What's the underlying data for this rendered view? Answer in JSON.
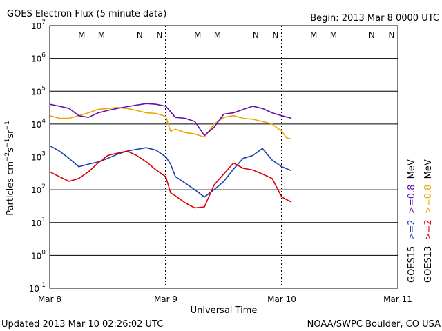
{
  "chart_data": {
    "type": "line",
    "title": "GOES Electron Flux (5 minute data)",
    "begin_label": "Begin: 2013 Mar 8 0000 UTC",
    "xlabel": "Universal Time",
    "ylabel": "Particles cm-2s-1sr-1",
    "y_scale": "log",
    "ylim": [
      0.1,
      10000000
    ],
    "y_ticks": [
      {
        "base": "10",
        "exp": "7",
        "value": 10000000
      },
      {
        "base": "10",
        "exp": "6",
        "value": 1000000
      },
      {
        "base": "10",
        "exp": "5",
        "value": 100000
      },
      {
        "base": "10",
        "exp": "4",
        "value": 10000
      },
      {
        "base": "10",
        "exp": "3",
        "value": 1000
      },
      {
        "base": "10",
        "exp": "2",
        "value": 100
      },
      {
        "base": "10",
        "exp": "1",
        "value": 10
      },
      {
        "base": "10",
        "exp": "0",
        "value": 1
      },
      {
        "base": "10",
        "exp": "-1",
        "value": 0.1
      }
    ],
    "x_unit": "hours since 2013 Mar 8 0000 UTC",
    "xlim": [
      0,
      72
    ],
    "x_ticks": [
      {
        "label": "Mar 8",
        "value": 0
      },
      {
        "label": "Mar 9",
        "value": 24
      },
      {
        "label": "Mar 10",
        "value": 48
      },
      {
        "label": "Mar 11",
        "value": 72
      }
    ],
    "threshold_line": {
      "value": 1000,
      "style": "dashed"
    },
    "markers": [
      {
        "label": "M",
        "hour": 6.6,
        "color": "#cc0000"
      },
      {
        "label": "M",
        "hour": 10.7,
        "color": "#1a3fb0"
      },
      {
        "label": "N",
        "hour": 18.6,
        "color": "#cc0000"
      },
      {
        "label": "N",
        "hour": 22.7,
        "color": "#1a3fb0"
      },
      {
        "label": "M",
        "hour": 30.6,
        "color": "#cc0000"
      },
      {
        "label": "M",
        "hour": 34.7,
        "color": "#1a3fb0"
      },
      {
        "label": "N",
        "hour": 42.6,
        "color": "#cc0000"
      },
      {
        "label": "N",
        "hour": 46.7,
        "color": "#1a3fb0"
      },
      {
        "label": "M",
        "hour": 54.6,
        "color": "#cc0000"
      },
      {
        "label": "M",
        "hour": 58.7,
        "color": "#1a3fb0"
      },
      {
        "label": "N",
        "hour": 66.6,
        "color": "#cc0000"
      },
      {
        "label": "N",
        "hour": 70.7,
        "color": "#1a3fb0"
      }
    ],
    "series": [
      {
        "name": "GOES13 >=0.8 MeV",
        "color": "#e8a800",
        "x": [
          0,
          2,
          4,
          6,
          8,
          10,
          12,
          14,
          16,
          18,
          20,
          22,
          24,
          25,
          26,
          28,
          30,
          32,
          34,
          36,
          38,
          40,
          42,
          44,
          46,
          48,
          49,
          50
        ],
        "y": [
          18000,
          15000,
          15000,
          18000,
          22000,
          28000,
          30000,
          32000,
          30000,
          26000,
          22000,
          21000,
          17000,
          6000,
          7000,
          5500,
          5000,
          4000,
          10000,
          16000,
          18000,
          15000,
          14000,
          12000,
          10000,
          6000,
          3800,
          3500
        ]
      },
      {
        "name": "GOES15 >=0.8 MeV",
        "color": "#6a0dad",
        "x": [
          0,
          2,
          4,
          6,
          8,
          10,
          12,
          14,
          16,
          18,
          20,
          22,
          24,
          26,
          28,
          30,
          32,
          34,
          36,
          38,
          40,
          42,
          44,
          46,
          48,
          50
        ],
        "y": [
          40000,
          35000,
          30000,
          18000,
          16000,
          22000,
          26000,
          30000,
          34000,
          38000,
          42000,
          40000,
          35000,
          16000,
          15000,
          12000,
          4500,
          8000,
          20000,
          22000,
          28000,
          35000,
          30000,
          22000,
          18000,
          15000
        ]
      },
      {
        "name": "GOES15 >=2 MeV",
        "color": "#1a3fb0",
        "x": [
          0,
          2,
          4,
          6,
          8,
          10,
          12,
          14,
          16,
          18,
          20,
          22,
          24,
          25,
          26,
          28,
          30,
          32,
          34,
          36,
          38,
          40,
          42,
          44,
          46,
          48,
          50
        ],
        "y": [
          2200,
          1500,
          900,
          500,
          600,
          700,
          900,
          1200,
          1500,
          1700,
          1900,
          1600,
          1000,
          600,
          250,
          160,
          100,
          60,
          100,
          180,
          420,
          900,
          1100,
          1800,
          800,
          500,
          380
        ]
      },
      {
        "name": "GOES13 >=2 MeV",
        "color": "#dd0000",
        "x": [
          0,
          2,
          4,
          6,
          8,
          10,
          12,
          14,
          16,
          18,
          20,
          22,
          24,
          25,
          26,
          28,
          30,
          32,
          34,
          36,
          38,
          40,
          42,
          44,
          46,
          48,
          49,
          50
        ],
        "y": [
          350,
          250,
          180,
          220,
          350,
          650,
          1100,
          1300,
          1500,
          1100,
          700,
          400,
          250,
          80,
          65,
          40,
          28,
          30,
          140,
          300,
          650,
          450,
          400,
          300,
          220,
          60,
          50,
          42
        ]
      }
    ],
    "legend": [
      {
        "text": "GOES15  >=2  >=0.8  MeV",
        "parts": [
          {
            "t": "GOES15",
            "color": "#000000"
          },
          {
            "t": "  >=2",
            "color": "#1a3fb0"
          },
          {
            "t": "  >=0.8",
            "color": "#6a0dad"
          },
          {
            "t": "  MeV",
            "color": "#000000"
          }
        ]
      },
      {
        "text": "GOES13  >=2  >=0.8  MeV",
        "parts": [
          {
            "t": "GOES13",
            "color": "#000000"
          },
          {
            "t": "  >=2",
            "color": "#dd0000"
          },
          {
            "t": "  >=0.8",
            "color": "#e8a800"
          },
          {
            "t": "  MeV",
            "color": "#000000"
          }
        ]
      }
    ]
  },
  "footer": {
    "updated": "Updated 2013 Mar 10 02:26:02 UTC",
    "source": "NOAA/SWPC Boulder, CO USA"
  }
}
